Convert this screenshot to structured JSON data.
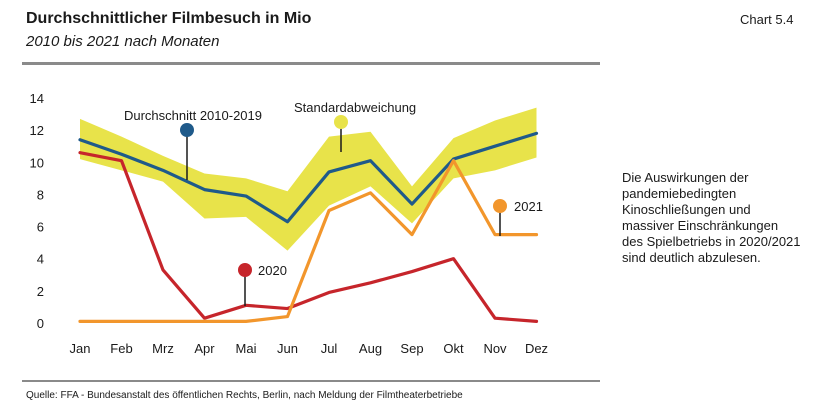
{
  "header": {
    "title": "Durchschnittlicher Filmbesuch in Mio",
    "subtitle": "2010 bis 2021 nach Monaten",
    "chart_label": "Chart 5.4"
  },
  "note": "Die Auswirkungen der pandemiebedingten Kinoschließungen und massiver Einschränkungen des Spielbetriebs in 2020/2021 sind deutlich abzulesen.",
  "source": "Quelle: FFA - Bundesanstalt des öffentlichen Rechts, Berlin, nach Meldung der Filmtheaterbetriebe",
  "chart_data": {
    "type": "line",
    "categories": [
      "Jan",
      "Feb",
      "Mrz",
      "Apr",
      "Mai",
      "Jun",
      "Jul",
      "Aug",
      "Sep",
      "Okt",
      "Nov",
      "Dez"
    ],
    "ylim": [
      0,
      14
    ],
    "yticks": [
      0,
      2,
      4,
      6,
      8,
      10,
      12,
      14
    ],
    "grid": false,
    "band": {
      "name": "Standardabweichung",
      "color": "#e8e34a",
      "upper": [
        12.7,
        11.6,
        10.4,
        9.3,
        9.0,
        8.2,
        11.6,
        11.9,
        8.5,
        11.5,
        12.6,
        13.4
      ],
      "lower": [
        10.2,
        9.5,
        8.8,
        6.5,
        6.6,
        4.5,
        7.3,
        8.5,
        6.2,
        9.0,
        9.5,
        10.3
      ]
    },
    "series": [
      {
        "name": "Durchschnitt 2010-2019",
        "color": "#1f5a8a",
        "values": [
          11.4,
          10.5,
          9.5,
          8.3,
          7.9,
          6.3,
          9.4,
          10.1,
          7.4,
          10.2,
          11.0,
          11.8
        ]
      },
      {
        "name": "2020",
        "color": "#c6252b",
        "values": [
          10.6,
          10.1,
          3.3,
          0.3,
          1.1,
          0.9,
          1.9,
          2.5,
          3.2,
          4.0,
          0.3,
          0.1
        ]
      },
      {
        "name": "2021",
        "color": "#f2962c",
        "values": [
          0.1,
          0.1,
          0.1,
          0.1,
          0.1,
          0.4,
          7.0,
          8.1,
          5.5,
          10.1,
          5.5,
          5.5
        ]
      }
    ],
    "annotations": [
      {
        "label": "Durchschnitt 2010-2019",
        "color": "#1f5a8a"
      },
      {
        "label": "Standardabweichung",
        "color": "#e8e34a"
      },
      {
        "label": "2021",
        "color": "#f2962c"
      },
      {
        "label": "2020",
        "color": "#c6252b"
      }
    ]
  }
}
